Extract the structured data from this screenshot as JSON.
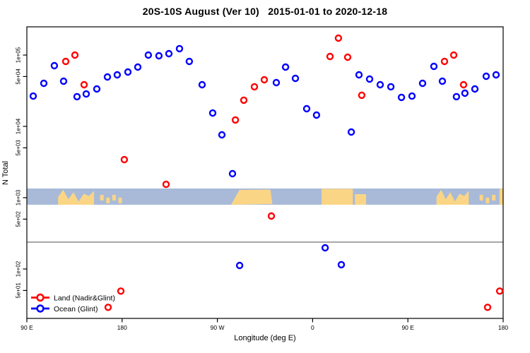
{
  "title": "20S-10S August (Ver 10)   2015-01-01 to 2020-12-18",
  "threshold_line": {
    "value": 238,
    "color": "#7f7f7f"
  },
  "map_band": {
    "ocean_color": "#A8BAD8",
    "land_color": "#FBD586",
    "segments": [
      {
        "d0": 119.5,
        "d1": 153.5,
        "kind": "peaks"
      },
      {
        "d0": 158,
        "d1": 181,
        "kind": "dots"
      },
      {
        "d0": 283,
        "d1": 322,
        "kind": "plateau"
      },
      {
        "d0": 368.5,
        "d1": 398,
        "kind": "block"
      },
      {
        "d0": 400,
        "d1": 410.5,
        "kind": "lowblock"
      },
      {
        "d0": 477,
        "d1": 507.5,
        "kind": "peaks"
      },
      {
        "d0": 516.5,
        "d1": 534,
        "kind": "dots"
      },
      {
        "d0": 536.5,
        "d1": 540,
        "kind": "block"
      }
    ]
  },
  "legend": {
    "entries": [
      {
        "label": "Land (Nadir&Glint)",
        "color": "#FF0000"
      },
      {
        "label": "Ocean (Glint)",
        "color": "#0000FF"
      }
    ]
  },
  "chart_data": {
    "type": "scatter",
    "title": "20S-10S August (Ver 10)   2015-01-01 to 2020-12-18",
    "x_axis": {
      "label": "Longitude (deg E)",
      "deg_range": [
        90,
        540
      ],
      "ticks": [
        {
          "deg": 90,
          "label": "90 E"
        },
        {
          "deg": 180,
          "label": "180"
        },
        {
          "deg": 270,
          "label": "90 W"
        },
        {
          "deg": 360,
          "label": "0"
        },
        {
          "deg": 450,
          "label": "90 E"
        },
        {
          "deg": 540,
          "label": "180"
        }
      ]
    },
    "y_axis": {
      "label": "N Total",
      "scale": "log",
      "ticks": [
        {
          "value": 100000,
          "label": "1e+05"
        },
        {
          "value": 50000,
          "label": "5e+04"
        },
        {
          "value": 10000,
          "label": "1e+04"
        },
        {
          "value": 5000,
          "label": "5e+03"
        },
        {
          "value": 1000,
          "label": "1e+03"
        },
        {
          "value": 500,
          "label": "5e+02"
        },
        {
          "value": 100,
          "label": "1e+02"
        },
        {
          "value": 50,
          "label": "5e+01"
        }
      ]
    },
    "series": [
      {
        "name": "Land (Nadir&Glint)",
        "color": "#FF0000",
        "marker": "open-circle",
        "points": [
          [
            126.7,
            81500
          ],
          [
            135.4,
            100000
          ],
          [
            144.1,
            38400
          ],
          [
            166.8,
            29
          ],
          [
            178.8,
            49
          ],
          [
            182.1,
            3420
          ],
          [
            221.5,
            1540
          ],
          [
            287,
            12300
          ],
          [
            295,
            23300
          ],
          [
            305,
            35900
          ],
          [
            314.3,
            45000
          ],
          [
            321,
            553
          ],
          [
            376.4,
            95500
          ],
          [
            384.4,
            173000
          ],
          [
            393.1,
            93400
          ],
          [
            406.4,
            27300
          ],
          [
            484.6,
            81500
          ],
          [
            493.3,
            100000
          ],
          [
            502.6,
            38400
          ],
          [
            525.3,
            29
          ],
          [
            536.7,
            49
          ]
        ]
      },
      {
        "name": "Ocean (Glint)",
        "color": "#0000FF",
        "marker": "open-circle",
        "points": [
          [
            96,
            26600
          ],
          [
            106,
            40200
          ],
          [
            116,
            71000
          ],
          [
            124.7,
            43000
          ],
          [
            137.4,
            26100
          ],
          [
            146.1,
            28500
          ],
          [
            156.1,
            33500
          ],
          [
            166.1,
            49300
          ],
          [
            175.4,
            52800
          ],
          [
            185.5,
            57900
          ],
          [
            194.8,
            67900
          ],
          [
            204.8,
            100000
          ],
          [
            214.8,
            97700
          ],
          [
            224.2,
            104700
          ],
          [
            234.2,
            123000
          ],
          [
            243.5,
            81500
          ],
          [
            255.6,
            38400
          ],
          [
            265.6,
            15400
          ],
          [
            274.3,
            7600
          ],
          [
            284.3,
            2170
          ],
          [
            291,
            112
          ],
          [
            325.7,
            41100
          ],
          [
            334.4,
            67900
          ],
          [
            343.7,
            47100
          ],
          [
            354.4,
            17700
          ],
          [
            363.7,
            14400
          ],
          [
            371.8,
            198
          ],
          [
            387.1,
            115
          ],
          [
            396.5,
            8330
          ],
          [
            403.8,
            52800
          ],
          [
            413.8,
            46100
          ],
          [
            423.8,
            38400
          ],
          [
            433.9,
            35900
          ],
          [
            443.9,
            25500
          ],
          [
            453.9,
            26600
          ],
          [
            463.9,
            40200
          ],
          [
            474.6,
            69400
          ],
          [
            482.6,
            43000
          ],
          [
            495.9,
            26100
          ],
          [
            503.9,
            29200
          ],
          [
            513.3,
            33500
          ],
          [
            524,
            50500
          ],
          [
            533.3,
            52800
          ]
        ]
      }
    ]
  }
}
